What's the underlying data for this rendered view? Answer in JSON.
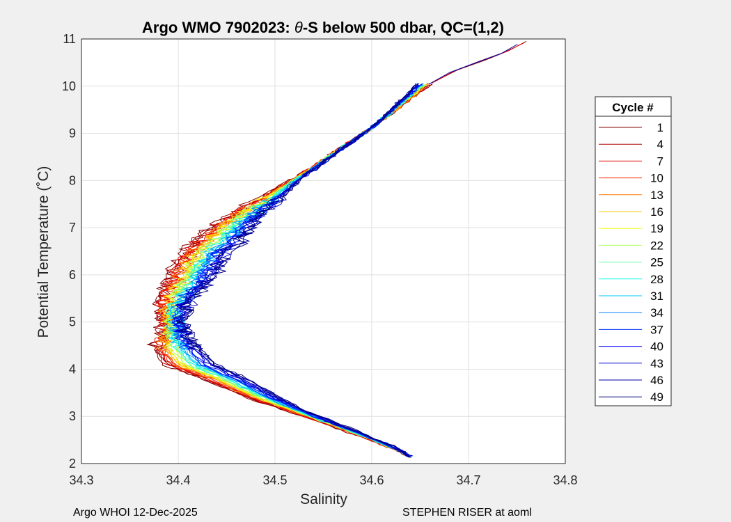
{
  "chart_data": {
    "type": "line",
    "title_prefix": "Argo WMO 7902023: ",
    "title_theta": "θ",
    "title_suffix": "-S below 500 dbar,  QC=(1,2)",
    "xlabel": "Salinity",
    "ylabel": "Potential Temperature (˚C)",
    "xlim": [
      34.3,
      34.8
    ],
    "ylim": [
      2,
      11
    ],
    "xticks": [
      "34.3",
      "34.4",
      "34.5",
      "34.6",
      "34.7",
      "34.8"
    ],
    "yticks": [
      "2",
      "3",
      "4",
      "5",
      "6",
      "7",
      "8",
      "9",
      "10",
      "11"
    ],
    "grid": true,
    "legend": {
      "title": "Cycle #",
      "placement": "outside-right",
      "entries": [
        {
          "label": "1",
          "color": "#800000"
        },
        {
          "label": "4",
          "color": "#b00000"
        },
        {
          "label": "7",
          "color": "#e00000"
        },
        {
          "label": "10",
          "color": "#ff2a00"
        },
        {
          "label": "13",
          "color": "#ff7f00"
        },
        {
          "label": "16",
          "color": "#ffc800"
        },
        {
          "label": "19",
          "color": "#f4ff0b"
        },
        {
          "label": "22",
          "color": "#aaff55"
        },
        {
          "label": "25",
          "color": "#60ff9f"
        },
        {
          "label": "28",
          "color": "#16ffe9"
        },
        {
          "label": "31",
          "color": "#00c8ff"
        },
        {
          "label": "34",
          "color": "#0080ff"
        },
        {
          "label": "37",
          "color": "#0035ff"
        },
        {
          "label": "40",
          "color": "#0000ff"
        },
        {
          "label": "43",
          "color": "#0000d0"
        },
        {
          "label": "46",
          "color": "#0000a8"
        },
        {
          "label": "49",
          "color": "#000080"
        }
      ]
    },
    "series_profile": {
      "temperature": [
        2.15,
        2.3,
        2.6,
        3.0,
        3.4,
        3.8,
        4.1,
        4.4,
        4.7,
        5.0,
        5.3,
        5.6,
        5.9,
        6.2,
        6.5,
        6.8,
        7.1,
        7.4,
        7.7,
        8.0,
        8.3,
        8.6,
        8.9,
        9.2,
        9.5,
        9.8,
        10.1
      ],
      "salinity_red": [
        34.64,
        34.625,
        34.585,
        34.53,
        34.47,
        34.425,
        34.385,
        34.375,
        34.38,
        34.385,
        34.38,
        34.385,
        34.39,
        34.395,
        34.405,
        34.42,
        34.44,
        34.465,
        34.49,
        34.515,
        34.54,
        34.56,
        34.585,
        34.605,
        34.625,
        34.645,
        34.665
      ],
      "salinity_blue": [
        34.64,
        34.628,
        34.595,
        34.545,
        34.505,
        34.47,
        34.44,
        34.425,
        34.41,
        34.405,
        34.41,
        34.42,
        34.435,
        34.445,
        34.455,
        34.47,
        34.48,
        34.495,
        34.51,
        34.525,
        34.545,
        34.565,
        34.585,
        34.605,
        34.62,
        34.635,
        34.65
      ]
    },
    "top_extension": {
      "salinity": [
        34.665,
        34.69,
        34.715,
        34.74,
        34.76
      ],
      "temperature": [
        10.1,
        10.35,
        10.55,
        10.75,
        10.95
      ]
    }
  },
  "footer": {
    "left": "Argo WHOI 12-Dec-2025",
    "right": "STEPHEN RISER at aoml"
  }
}
